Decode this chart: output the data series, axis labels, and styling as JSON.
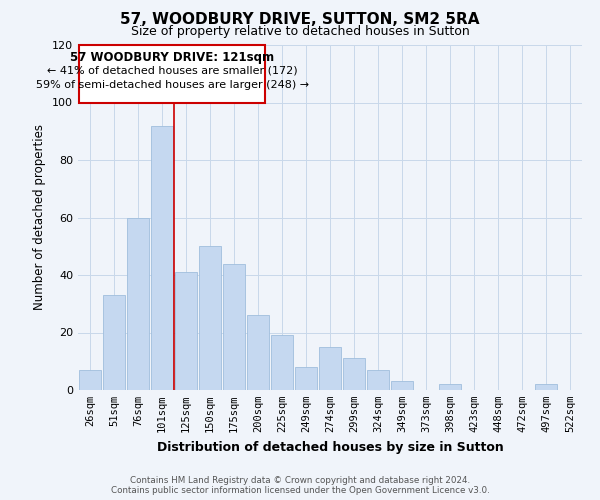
{
  "title": "57, WOODBURY DRIVE, SUTTON, SM2 5RA",
  "subtitle": "Size of property relative to detached houses in Sutton",
  "xlabel": "Distribution of detached houses by size in Sutton",
  "ylabel": "Number of detached properties",
  "categories": [
    "26sqm",
    "51sqm",
    "76sqm",
    "101sqm",
    "125sqm",
    "150sqm",
    "175sqm",
    "200sqm",
    "225sqm",
    "249sqm",
    "274sqm",
    "299sqm",
    "324sqm",
    "349sqm",
    "373sqm",
    "398sqm",
    "423sqm",
    "448sqm",
    "472sqm",
    "497sqm",
    "522sqm"
  ],
  "values": [
    7,
    33,
    60,
    92,
    41,
    50,
    44,
    26,
    19,
    8,
    15,
    11,
    7,
    3,
    0,
    2,
    0,
    0,
    0,
    2,
    0
  ],
  "bar_color": "#c5d8f0",
  "bar_edge_color": "#a0bedd",
  "highlight_line_color": "#cc0000",
  "ylim": [
    0,
    120
  ],
  "yticks": [
    0,
    20,
    40,
    60,
    80,
    100,
    120
  ],
  "annotation_title": "57 WOODBURY DRIVE: 121sqm",
  "annotation_line1": "← 41% of detached houses are smaller (172)",
  "annotation_line2": "59% of semi-detached houses are larger (248) →",
  "annotation_box_edge": "#cc0000",
  "footnote1": "Contains HM Land Registry data © Crown copyright and database right 2024.",
  "footnote2": "Contains public sector information licensed under the Open Government Licence v3.0.",
  "bg_color": "#f0f4fa",
  "grid_color": "#c8d8ea"
}
